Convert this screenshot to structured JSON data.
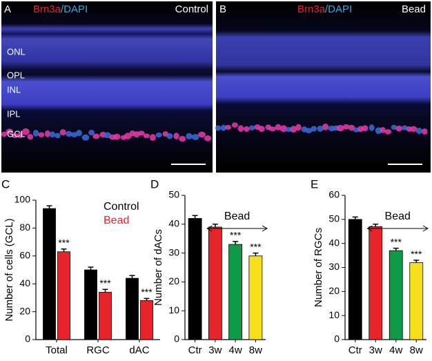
{
  "images": [
    {
      "panel": "A",
      "stain": "Brn3a",
      "counterstain": "/DAPI",
      "label": "Control",
      "layers": [
        "ONL",
        "OPL",
        "INL",
        "IPL",
        "GCL"
      ]
    },
    {
      "panel": "B",
      "stain": "Brn3a",
      "counterstain": "/DAPI",
      "label": "Bead"
    }
  ],
  "chart_data": [
    {
      "type": "grouped-bar",
      "panel": "C",
      "y_label": "Number of cells (GCL)",
      "categories": [
        "Total",
        "RGC",
        "dAC"
      ],
      "series": [
        {
          "name": "Control",
          "color": "#000000",
          "values": [
            94,
            50,
            44
          ],
          "errors": [
            2,
            2,
            2
          ],
          "significance": [
            null,
            null,
            null
          ]
        },
        {
          "name": "Bead",
          "color": "#e8242b",
          "values": [
            63,
            34,
            28
          ],
          "errors": [
            2,
            2,
            1.5
          ],
          "significance": [
            "***",
            "***",
            "***"
          ]
        }
      ],
      "ylim": [
        0,
        100
      ],
      "yticks": [
        0,
        20,
        40,
        60,
        80,
        100
      ]
    },
    {
      "type": "bar",
      "panel": "D",
      "y_label": "Number of  dACs",
      "categories": [
        "Ctr",
        "3w",
        "4w",
        "8w"
      ],
      "values": [
        42,
        39,
        33,
        29
      ],
      "errors": [
        1,
        1,
        1,
        1
      ],
      "colors": [
        "#000000",
        "#e8242b",
        "#109a48",
        "#f7e01a"
      ],
      "significance": [
        null,
        null,
        "***",
        "***"
      ],
      "annotation": "Bead",
      "ylim": [
        0,
        50
      ],
      "yticks": [
        0,
        10,
        20,
        30,
        40,
        50
      ]
    },
    {
      "type": "bar",
      "panel": "E",
      "y_label": "Number of  RGCs",
      "categories": [
        "Ctr",
        "3w",
        "4w",
        "8w"
      ],
      "values": [
        50,
        47,
        37,
        32
      ],
      "errors": [
        1,
        1,
        1,
        1
      ],
      "colors": [
        "#000000",
        "#e8242b",
        "#109a48",
        "#f7e01a"
      ],
      "significance": [
        null,
        null,
        "***",
        "***"
      ],
      "annotation": "Bead",
      "ylim": [
        0,
        60
      ],
      "yticks": [
        0,
        10,
        20,
        30,
        40,
        50,
        60
      ]
    }
  ]
}
